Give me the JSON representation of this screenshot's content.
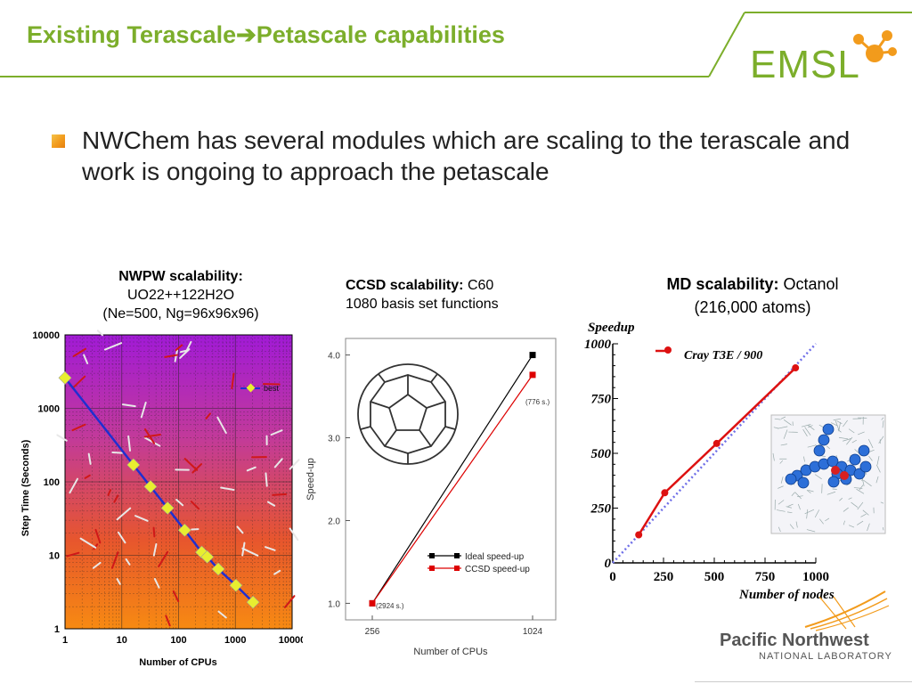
{
  "slide": {
    "title_part1": "Existing Terascale",
    "title_arrow": "➔",
    "title_part2": "Petascale capabilities",
    "logo_text": "EMSL",
    "bullet": "NWChem has several modules which are scaling to the terascale and work is ongoing to approach the petascale",
    "footer_logo_line1": "Pacific Northwest",
    "footer_logo_line2": "NATIONAL LABORATORY",
    "colors": {
      "green": "#7cae2b",
      "orange": "#f29b1c"
    }
  },
  "captions": {
    "nwpw_bold": "NWPW scalability:",
    "nwpw_line2": "UO22++122H2O",
    "nwpw_line3": "(Ne=500, Ng=96x96x96)",
    "ccsd_bold": "CCSD scalability:",
    "ccsd_rest": "C60",
    "ccsd_line2": "1080 basis set functions",
    "md_bold": "MD scalability:",
    "md_rest": "Octanol",
    "md_line2": "(216,000 atoms)"
  },
  "chart_data": [
    {
      "type": "line",
      "xlabel": "Number of CPUs",
      "ylabel": "Step Time (Seconds)",
      "x_scale": "log",
      "y_scale": "log",
      "xlim": [
        1,
        10000
      ],
      "ylim": [
        1,
        10000
      ],
      "x_ticks": [
        "1",
        "10",
        "100",
        "1000",
        "10000"
      ],
      "y_ticks": [
        "1",
        "10",
        "100",
        "1000",
        "10000"
      ],
      "series": [
        {
          "name": "best",
          "color": "#1f2fd0",
          "x": [
            1,
            16,
            32,
            64,
            128,
            256,
            320,
            500,
            1024,
            2048
          ],
          "y": [
            2600,
            170,
            86,
            44,
            22,
            11,
            9.5,
            6.5,
            3.9,
            2.3
          ]
        }
      ],
      "legend_position": "upper-right",
      "background": "gradient purple-to-orange"
    },
    {
      "type": "line",
      "xlabel": "Number of CPUs",
      "ylabel": "Speed-up",
      "categories": [
        "256",
        "1024"
      ],
      "ylim": [
        0.8,
        4.2
      ],
      "y_ticks": [
        "1.0",
        "2.0",
        "3.0",
        "4.0"
      ],
      "series": [
        {
          "name": "Ideal speed-up",
          "color": "#000000",
          "values": [
            1.0,
            4.0
          ]
        },
        {
          "name": "CCSD speed-up",
          "color": "#dd0000",
          "values": [
            1.0,
            3.76
          ]
        }
      ],
      "annotations": [
        "(2924 s.)",
        "(776 s.)"
      ],
      "legend_position": "lower-right"
    },
    {
      "type": "line",
      "xlabel": "Number of nodes",
      "ylabel": "Speedup",
      "xlim": [
        0,
        1000
      ],
      "ylim": [
        0,
        1000
      ],
      "x_ticks": [
        "0",
        "250",
        "500",
        "750",
        "1000"
      ],
      "y_ticks": [
        "0",
        "250",
        "500",
        "750",
        "1000"
      ],
      "series": [
        {
          "name": "Cray T3E / 900",
          "color": "#dd1111",
          "x": [
            128,
            256,
            512,
            900
          ],
          "y": [
            128,
            320,
            545,
            890
          ]
        }
      ],
      "ideal_line": {
        "color": "#6f6fe8",
        "style": "dotted"
      },
      "legend_position": "top-left"
    }
  ]
}
